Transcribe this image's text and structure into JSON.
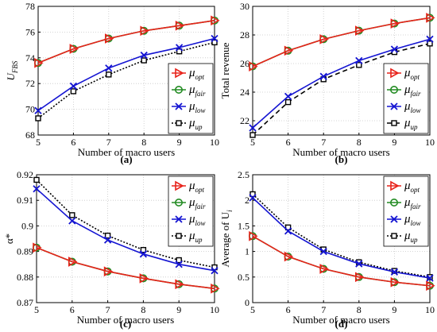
{
  "colors": {
    "opt": "#e8231b",
    "fair": "#228b22",
    "low": "#1414d2",
    "up": "#000000",
    "grid": "#c8c8c8"
  },
  "legend_symbol": "μ",
  "chart_data": [
    {
      "panel": "(a)",
      "type": "line",
      "xlabel": "Number of macro users",
      "ylabel": "U",
      "ylabel_sub": "FBS",
      "x": [
        5,
        6,
        7,
        8,
        9,
        10
      ],
      "xlim": [
        5,
        10
      ],
      "ylim": [
        68,
        78
      ],
      "yticks": [
        68,
        70,
        72,
        74,
        76,
        78
      ],
      "grid": true,
      "legend_position": "bottom-right",
      "series": [
        {
          "name": "opt",
          "marker": "triangle",
          "dash": "",
          "color_key": "opt",
          "values": [
            73.6,
            74.7,
            75.5,
            76.1,
            76.5,
            76.9
          ]
        },
        {
          "name": "fair",
          "marker": "circle",
          "dash": "",
          "color_key": "fair",
          "values": [
            73.6,
            74.7,
            75.5,
            76.1,
            76.5,
            76.9
          ]
        },
        {
          "name": "low",
          "marker": "x",
          "dash": "",
          "color_key": "low",
          "values": [
            69.9,
            71.8,
            73.2,
            74.2,
            74.8,
            75.5
          ]
        },
        {
          "name": "up",
          "marker": "square",
          "dash": "2,2",
          "color_key": "up",
          "values": [
            69.3,
            71.4,
            72.7,
            73.8,
            74.5,
            75.2
          ]
        }
      ]
    },
    {
      "panel": "(b)",
      "type": "line",
      "xlabel": "Number of macro users",
      "ylabel": "Total revenue",
      "ylabel_sub": "",
      "x": [
        5,
        6,
        7,
        8,
        9,
        10
      ],
      "xlim": [
        5,
        10
      ],
      "ylim": [
        21,
        30
      ],
      "yticks": [
        22,
        24,
        26,
        28,
        30
      ],
      "grid": true,
      "legend_position": "bottom-right",
      "series": [
        {
          "name": "opt",
          "marker": "triangle",
          "dash": "",
          "color_key": "opt",
          "values": [
            25.8,
            26.9,
            27.7,
            28.3,
            28.8,
            29.2
          ]
        },
        {
          "name": "fair",
          "marker": "circle",
          "dash": "",
          "color_key": "fair",
          "values": [
            25.8,
            26.9,
            27.7,
            28.3,
            28.8,
            29.2
          ]
        },
        {
          "name": "low",
          "marker": "x",
          "dash": "",
          "color_key": "low",
          "values": [
            21.5,
            23.7,
            25.1,
            26.2,
            27.0,
            27.7
          ]
        },
        {
          "name": "up",
          "marker": "square",
          "dash": "6,4",
          "color_key": "up",
          "values": [
            21.0,
            23.3,
            24.9,
            25.9,
            26.8,
            27.4
          ]
        }
      ]
    },
    {
      "panel": "(c)",
      "type": "line",
      "xlabel": "Number of macro users",
      "ylabel": "α*",
      "ylabel_sub": "",
      "x": [
        5,
        6,
        7,
        8,
        9,
        10
      ],
      "xlim": [
        5,
        10
      ],
      "ylim": [
        0.87,
        0.92
      ],
      "yticks": [
        0.87,
        0.88,
        0.89,
        0.9,
        0.91,
        0.92
      ],
      "grid": true,
      "legend_position": "top-right",
      "series": [
        {
          "name": "opt",
          "marker": "triangle",
          "dash": "",
          "color_key": "opt",
          "values": [
            0.8915,
            0.886,
            0.8822,
            0.8795,
            0.8772,
            0.8755
          ]
        },
        {
          "name": "fair",
          "marker": "circle",
          "dash": "",
          "color_key": "fair",
          "values": [
            0.8915,
            0.886,
            0.8822,
            0.8795,
            0.8772,
            0.8755
          ]
        },
        {
          "name": "low",
          "marker": "x",
          "dash": "",
          "color_key": "low",
          "values": [
            0.9145,
            0.902,
            0.8945,
            0.889,
            0.885,
            0.8825
          ]
        },
        {
          "name": "up",
          "marker": "square",
          "dash": "2,2",
          "color_key": "up",
          "values": [
            0.918,
            0.9042,
            0.8962,
            0.8906,
            0.8866,
            0.8838
          ]
        }
      ]
    },
    {
      "panel": "(d)",
      "type": "line",
      "xlabel": "Number of macro users",
      "ylabel": "Average of  U",
      "ylabel_sub": "i",
      "x": [
        5,
        6,
        7,
        8,
        9,
        10
      ],
      "xlim": [
        5,
        10
      ],
      "ylim": [
        0,
        2.5
      ],
      "yticks": [
        0,
        0.5,
        1,
        1.5,
        2,
        2.5
      ],
      "grid": true,
      "legend_position": "top-right",
      "series": [
        {
          "name": "opt",
          "marker": "triangle",
          "dash": "",
          "color_key": "opt",
          "values": [
            1.3,
            0.9,
            0.66,
            0.5,
            0.4,
            0.33
          ]
        },
        {
          "name": "fair",
          "marker": "circle",
          "dash": "",
          "color_key": "fair",
          "values": [
            1.3,
            0.9,
            0.66,
            0.5,
            0.4,
            0.33
          ]
        },
        {
          "name": "low",
          "marker": "x",
          "dash": "",
          "color_key": "low",
          "values": [
            2.05,
            1.4,
            1.0,
            0.76,
            0.6,
            0.48
          ]
        },
        {
          "name": "up",
          "marker": "square",
          "dash": "2,2",
          "color_key": "up",
          "values": [
            2.12,
            1.47,
            1.04,
            0.79,
            0.62,
            0.5
          ]
        }
      ]
    }
  ]
}
